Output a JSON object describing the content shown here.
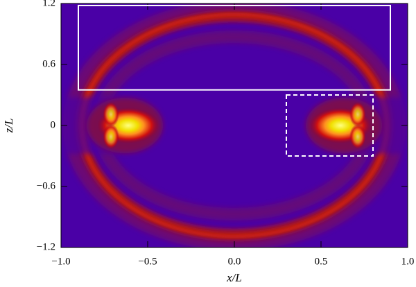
{
  "chart_data": {
    "type": "image",
    "x_label": "x/L",
    "y_label": "z/L",
    "xlim": [
      -1,
      1
    ],
    "ylim": [
      -1.2,
      1.2
    ],
    "xticks": [
      {
        "value": -1,
        "label": "−1.0"
      },
      {
        "value": -0.5,
        "label": "−0.5"
      },
      {
        "value": 0,
        "label": "0.0"
      },
      0.5,
      {
        "value": 1,
        "label": "1.0"
      }
    ],
    "yticks": [
      {
        "value": -1.2,
        "label": "−1.2"
      },
      {
        "value": -0.6,
        "label": "−0.6"
      },
      0,
      0.6,
      1.2
    ],
    "boxes": [
      {
        "x": [
          -0.9,
          0.9
        ],
        "y": [
          0.35,
          1.18
        ],
        "style": "solid",
        "color": "#ffffff"
      },
      {
        "x": [
          0.3,
          0.8
        ],
        "y": [
          -0.3,
          0.3
        ],
        "style": "dashed",
        "color": "#ffffff"
      }
    ]
  }
}
